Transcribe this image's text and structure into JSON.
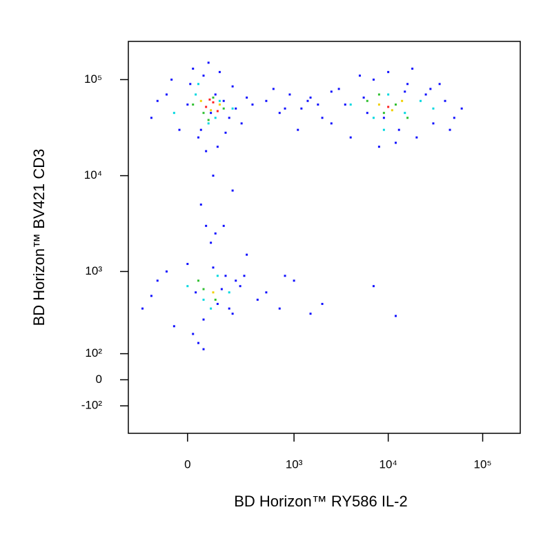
{
  "chart_data": {
    "type": "scatter",
    "x_label": "BD Horizon™ RY586 IL-2",
    "y_label": "BD Horizon™ BV421 CD3",
    "xscale": "biexponential",
    "yscale": "biexponential",
    "xlim": [
      -300,
      250000
    ],
    "ylim": [
      -250,
      250000
    ],
    "xticks": [
      0,
      {
        "value": 1000,
        "label": "10³"
      },
      {
        "value": 10000,
        "label": "10⁴"
      },
      {
        "value": 100000,
        "label": "10⁵"
      }
    ],
    "yticks": [
      {
        "value": -100,
        "label": "-10²"
      },
      0,
      {
        "value": 100,
        "label": "10²"
      },
      {
        "value": 1000,
        "label": "10³"
      },
      {
        "value": 10000,
        "label": "10⁴"
      },
      {
        "value": 100000,
        "label": "10⁵"
      }
    ],
    "series": [
      {
        "color": "#1010ff",
        "x": [
          -150,
          -80,
          -30,
          10,
          40,
          60,
          90,
          120,
          150,
          200,
          260,
          350,
          -120,
          20,
          70,
          110,
          180,
          300,
          -60,
          50,
          130,
          220,
          0,
          80,
          160,
          500,
          700,
          900,
          1200,
          1500,
          2000,
          600,
          1100,
          1800,
          2500,
          800,
          1400,
          2500,
          3000,
          4000,
          5000,
          6000,
          8000,
          10000,
          13000,
          16000,
          20000,
          25000,
          30000,
          40000,
          50000,
          60000,
          3500,
          7000,
          12000,
          18000,
          28000,
          45000,
          5500,
          9000,
          15000,
          35000,
          100,
          50,
          150,
          200,
          -200,
          -120,
          -50,
          0,
          30,
          60,
          90,
          120,
          160,
          200,
          250,
          300,
          400,
          -80,
          20,
          70,
          140,
          220,
          -150,
          40,
          100,
          180,
          280,
          60,
          110,
          500,
          700,
          1000,
          1500,
          2000,
          7000,
          12000,
          800
        ],
        "y": [
          40000,
          70000,
          30000,
          90000,
          25000,
          110000,
          45000,
          20000,
          60000,
          85000,
          35000,
          55000,
          60000,
          130000,
          18000,
          70000,
          40000,
          65000,
          100000,
          30000,
          120000,
          50000,
          55000,
          150000,
          28000,
          60000,
          45000,
          70000,
          50000,
          65000,
          40000,
          80000,
          30000,
          55000,
          75000,
          50000,
          60000,
          35000,
          80000,
          25000,
          110000,
          45000,
          20000,
          120000,
          30000,
          90000,
          25000,
          70000,
          35000,
          60000,
          40000,
          50000,
          55000,
          100000,
          22000,
          130000,
          80000,
          30000,
          65000,
          40000,
          75000,
          90000,
          10000,
          5000,
          3000,
          7000,
          400,
          800,
          250,
          1200,
          600,
          300,
          2000,
          450,
          900,
          350,
          700,
          1500,
          500,
          1000,
          200,
          3000,
          650,
          800,
          550,
          150,
          1100,
          400,
          900,
          120,
          2500,
          600,
          400,
          800,
          350,
          450,
          700,
          330,
          900
        ]
      },
      {
        "color": "#00d8e0",
        "x": [
          -50,
          30,
          80,
          130,
          200,
          40,
          110,
          4000,
          7000,
          10000,
          15000,
          22000,
          9000,
          30000,
          0,
          60,
          120,
          180,
          90
        ],
        "y": [
          45000,
          70000,
          35000,
          60000,
          50000,
          90000,
          40000,
          55000,
          40000,
          70000,
          45000,
          60000,
          30000,
          50000,
          700,
          500,
          900,
          600,
          400
        ]
      },
      {
        "color": "#30c030",
        "x": [
          20,
          60,
          100,
          150,
          80,
          6000,
          9000,
          12000,
          16000,
          8000,
          60,
          110,
          40
        ],
        "y": [
          55000,
          45000,
          65000,
          50000,
          38000,
          60000,
          45000,
          55000,
          40000,
          70000,
          650,
          500,
          800
        ]
      },
      {
        "color": "#f0d000",
        "x": [
          50,
          90,
          130,
          8000,
          11000,
          14000,
          100
        ],
        "y": [
          60000,
          48000,
          55000,
          55000,
          48000,
          60000,
          600
        ]
      },
      {
        "color": "#ff2020",
        "x": [
          70,
          100,
          120,
          85,
          10000
        ],
        "y": [
          52000,
          58000,
          47000,
          62000,
          52000
        ]
      }
    ]
  }
}
